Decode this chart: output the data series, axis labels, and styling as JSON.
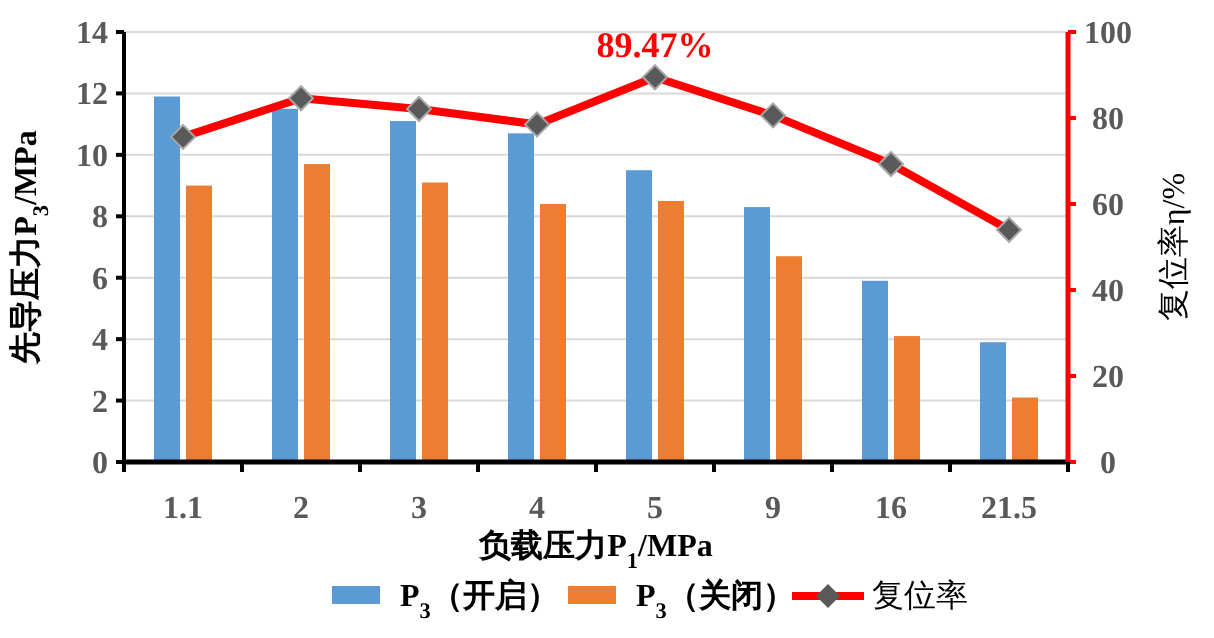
{
  "chart_data": {
    "type": "bar",
    "xlabel": "负载压力P$_{1}$/MPa",
    "ylabel": "先导压力P$_{3}$/MPa",
    "y2label": "复位率η/%",
    "categories": [
      "1.1",
      "2",
      "3",
      "4",
      "5",
      "9",
      "16",
      "21.5"
    ],
    "series": [
      {
        "name": "P$_{3}$（开启）",
        "color": "#5b9bd5",
        "values": [
          11.9,
          11.5,
          11.1,
          10.7,
          9.5,
          8.3,
          5.9,
          3.9
        ]
      },
      {
        "name": "P$_{3}$（关闭）",
        "color": "#ed7d31",
        "values": [
          9.0,
          9.7,
          9.1,
          8.4,
          8.5,
          6.7,
          4.1,
          2.1
        ]
      },
      {
        "name": "复位率",
        "type": "line",
        "axis": "y2",
        "color": "#ff0000",
        "marker": "diamond",
        "line_style": "solid",
        "values": [
          75.6,
          84.6,
          82.1,
          78.5,
          89.47,
          80.6,
          69.3,
          54.0
        ]
      }
    ],
    "ylim": [
      0,
      14
    ],
    "yticks": [
      0,
      2,
      4,
      6,
      8,
      10,
      12,
      14
    ],
    "y2lim": [
      0,
      100
    ],
    "y2ticks": [
      0,
      20,
      40,
      60,
      80,
      100
    ],
    "annotations": [
      "89.47%"
    ],
    "grid": "y",
    "legend": "bottom"
  }
}
